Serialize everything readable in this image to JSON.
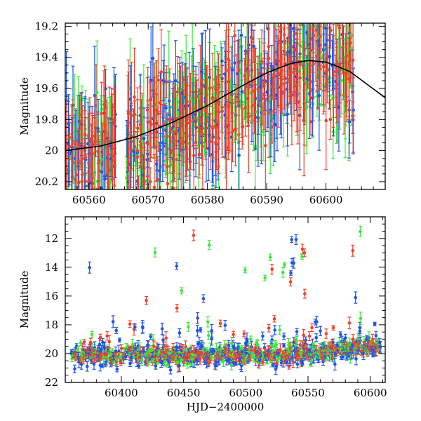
{
  "colors": {
    "green": "#3ee63e",
    "blue": "#1f55e6",
    "red": "#f0412c",
    "model": "#000000"
  },
  "chart_data": [
    {
      "type": "scatter",
      "panel": "top",
      "title": "",
      "xlabel": "",
      "ylabel": "Magnitude",
      "xlim": [
        60556,
        60610
      ],
      "ylim": [
        20.25,
        19.18
      ],
      "y_inverted": true,
      "xticks": [
        60560,
        60570,
        60580,
        60590,
        60600
      ],
      "xtick_labels": [
        "60560",
        "60570",
        "60580",
        "60590",
        "60600"
      ],
      "yticks": [
        19.2,
        19.4,
        19.6,
        19.8,
        20,
        20.2
      ],
      "ytick_labels": [
        "19.2",
        "19.4",
        "19.6",
        "19.8",
        "20",
        "20.2"
      ],
      "series": [
        {
          "color": "green",
          "marker": "point-with-errorbar"
        },
        {
          "color": "blue",
          "marker": "point-with-errorbar"
        },
        {
          "color": "red",
          "marker": "point-with-errorbar"
        },
        {
          "color": "model",
          "marker": "line",
          "x": [
            60556,
            60562,
            60568,
            60574,
            60580,
            60586,
            60590,
            60594,
            60597,
            60600,
            60604,
            60610
          ],
          "y": [
            20.0,
            19.97,
            19.91,
            19.82,
            19.71,
            19.58,
            19.5,
            19.44,
            19.42,
            19.43,
            19.49,
            19.66
          ]
        }
      ],
      "grid": false
    },
    {
      "type": "scatter",
      "panel": "bottom",
      "title": "",
      "xlabel": "HJD−2400000",
      "ylabel": "Magnitude",
      "xlim": [
        60355,
        60612
      ],
      "ylim": [
        22,
        10.5
      ],
      "y_inverted": true,
      "xticks": [
        60400,
        60450,
        60500,
        60550,
        60600
      ],
      "xtick_labels": [
        "60400",
        "60450",
        "60500",
        "60550",
        "60600"
      ],
      "yticks": [
        12,
        14,
        16,
        18,
        20,
        22
      ],
      "ytick_labels": [
        "12",
        "14",
        "16",
        "18",
        "20",
        "22"
      ],
      "series": [
        {
          "color": "green",
          "marker": "point-with-errorbar"
        },
        {
          "color": "blue",
          "marker": "point-with-errorbar"
        },
        {
          "color": "red",
          "marker": "point-with-errorbar"
        }
      ],
      "grid": false
    }
  ]
}
